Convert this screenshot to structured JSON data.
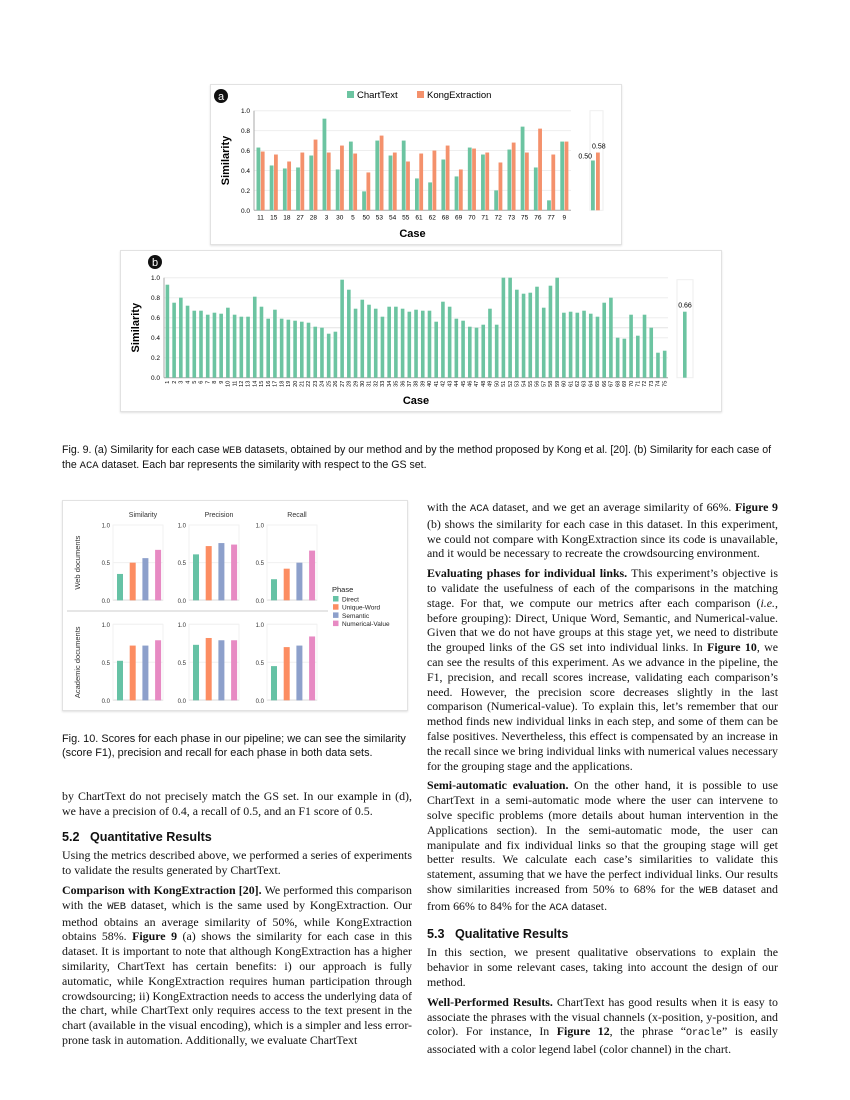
{
  "colors": {
    "charttext": "#6cc4a1",
    "kong": "#f4916c",
    "direct": "#66c2a5",
    "unique_word": "#fc8d62",
    "semantic": "#8da0cb",
    "numerical_value": "#e78ac3",
    "badge": "#111111"
  },
  "chart_data": [
    {
      "type": "bar",
      "panel_label": "a",
      "xlabel": "Case",
      "ylabel": "Similarity",
      "ylim": [
        0,
        1
      ],
      "yticks": [
        "0.0",
        "0.2",
        "0.4",
        "0.6",
        "0.8",
        "1.0"
      ],
      "grid": true,
      "legend": "top",
      "categories": [
        "11",
        "15",
        "18",
        "27",
        "28",
        "3",
        "30",
        "5",
        "50",
        "53",
        "54",
        "55",
        "61",
        "62",
        "68",
        "69",
        "70",
        "71",
        "72",
        "73",
        "75",
        "76",
        "77",
        "9"
      ],
      "series": [
        {
          "name": "ChartText",
          "values": [
            0.63,
            0.45,
            0.42,
            0.43,
            0.55,
            0.92,
            0.41,
            0.69,
            0.19,
            0.7,
            0.55,
            0.7,
            0.32,
            0.28,
            0.51,
            0.34,
            0.63,
            0.56,
            0.2,
            0.61,
            0.84,
            0.43,
            0.1,
            0.69
          ]
        },
        {
          "name": "KongExtraction",
          "values": [
            0.59,
            0.56,
            0.49,
            0.58,
            0.71,
            0.58,
            0.65,
            0.57,
            0.38,
            0.75,
            0.58,
            0.49,
            0.57,
            0.6,
            0.65,
            0.41,
            0.62,
            0.58,
            0.48,
            0.68,
            0.58,
            0.82,
            0.56,
            0.69
          ]
        }
      ],
      "average": {
        "values": [
          0.5,
          0.58
        ],
        "labels": [
          "0.50",
          "0.58"
        ]
      }
    },
    {
      "type": "bar",
      "panel_label": "b",
      "xlabel": "Case",
      "ylabel": "Similarity",
      "ylim": [
        0,
        1
      ],
      "yticks": [
        "0.0",
        "0.2",
        "0.4",
        "0.6",
        "0.8",
        "1.0"
      ],
      "grid": true,
      "categories": [
        "1",
        "2",
        "3",
        "4",
        "5",
        "6",
        "7",
        "8",
        "9",
        "10",
        "11",
        "12",
        "13",
        "14",
        "15",
        "16",
        "17",
        "18",
        "19",
        "20",
        "21",
        "22",
        "23",
        "24",
        "25",
        "26",
        "27",
        "28",
        "29",
        "30",
        "31",
        "32",
        "33",
        "34",
        "35",
        "36",
        "37",
        "38",
        "39",
        "40",
        "41",
        "42",
        "43",
        "44",
        "45",
        "46",
        "47",
        "48",
        "49",
        "50",
        "51",
        "52",
        "53",
        "54",
        "55",
        "56",
        "57",
        "58",
        "59",
        "60",
        "61",
        "62",
        "63",
        "64",
        "65",
        "66",
        "67",
        "68",
        "69",
        "70",
        "71",
        "72",
        "73",
        "74",
        "75"
      ],
      "values": [
        0.93,
        0.75,
        0.8,
        0.72,
        0.67,
        0.67,
        0.63,
        0.65,
        0.64,
        0.7,
        0.63,
        0.61,
        0.61,
        0.81,
        0.71,
        0.59,
        0.68,
        0.59,
        0.58,
        0.57,
        0.56,
        0.55,
        0.51,
        0.5,
        0.44,
        0.46,
        0.98,
        0.88,
        0.69,
        0.78,
        0.73,
        0.69,
        0.61,
        0.71,
        0.71,
        0.69,
        0.66,
        0.68,
        0.67,
        0.67,
        0.56,
        0.76,
        0.71,
        0.59,
        0.57,
        0.51,
        0.5,
        0.53,
        0.69,
        0.53,
        1.0,
        1.0,
        0.88,
        0.84,
        0.85,
        0.91,
        0.7,
        0.92,
        1.0,
        0.65,
        0.66,
        0.65,
        0.67,
        0.64,
        0.61,
        0.75,
        0.8,
        0.4,
        0.39,
        0.63,
        0.42,
        0.63,
        0.5,
        0.25,
        0.27
      ],
      "average": {
        "value": 0.66,
        "label": "0.66"
      }
    },
    {
      "type": "bar",
      "ylim": [
        0,
        1
      ],
      "yticks": [
        "0.0",
        "0.5",
        "1.0"
      ],
      "columns": [
        "Similarity",
        "Precision",
        "Recall"
      ],
      "rows": [
        "Web documents",
        "Academic documents"
      ],
      "legend_title": "Phase",
      "legend": "right",
      "categories": [
        "Direct",
        "Unique-Word",
        "Semantic",
        "Numerical-Value"
      ],
      "values": {
        "Web documents": {
          "Similarity": [
            0.35,
            0.5,
            0.56,
            0.67
          ],
          "Precision": [
            0.61,
            0.72,
            0.76,
            0.74
          ],
          "Recall": [
            0.28,
            0.42,
            0.5,
            0.66
          ]
        },
        "Academic documents": {
          "Similarity": [
            0.52,
            0.72,
            0.72,
            0.79
          ],
          "Precision": [
            0.73,
            0.82,
            0.79,
            0.79
          ],
          "Recall": [
            0.45,
            0.7,
            0.72,
            0.84
          ]
        }
      }
    }
  ],
  "captions": {
    "fig9": [
      [
        "Fig. 9. (a) Similarity for each case ",
        ""
      ],
      [
        "WEB",
        "m"
      ],
      [
        " datasets, obtained by our method and by the method proposed by Kong et al. [20]. (b) Similarity for each case of the ",
        ""
      ],
      [
        "ACA",
        "m"
      ],
      [
        " dataset. Each bar represents the similarity with respect to the GS set.",
        ""
      ]
    ],
    "fig10": [
      [
        "Fig. 10. Scores for each phase in our pipeline; we can see the similarity (score F1), precision and recall for each phase in both data sets.",
        ""
      ]
    ]
  },
  "left": [
    {
      "type": "p",
      "runs": [
        [
          "by ChartText do not precisely match the GS set. In our example in (d), we have a precision of 0.4, a recall of 0.5, and an F1 score of 0.5.",
          ""
        ]
      ]
    },
    {
      "type": "h",
      "num": "5.2",
      "title": "Quantitative Results"
    },
    {
      "type": "p",
      "runs": [
        [
          "Using the metrics described above, we performed a series of experiments to validate the results generated by ChartText.",
          ""
        ]
      ]
    },
    {
      "type": "p",
      "runs": [
        [
          "Comparison with KongExtraction [20].",
          "b"
        ],
        [
          " We performed this comparison with the ",
          ""
        ],
        [
          "WEB",
          "m"
        ],
        [
          " dataset, which is the same used by KongExtraction. Our method obtains an average similarity of 50%, while KongExtraction obtains 58%. ",
          ""
        ],
        [
          "Figure 9",
          "b"
        ],
        [
          " (a) shows the similarity for each case in this dataset. It is important to note that although KongExtraction has a higher similarity, ChartText has certain benefits: i) our approach is fully automatic, while KongExtraction requires human participation through crowdsourcing; ii) KongExtraction needs to access the underlying data of the chart, while ChartText only requires access to the text present in the chart (available in the visual encoding), which is a simpler and less error-prone task in automation. Additionally, we evaluate ChartText",
          ""
        ]
      ]
    }
  ],
  "right": [
    {
      "type": "p",
      "runs": [
        [
          "with the ",
          ""
        ],
        [
          "ACA",
          "m"
        ],
        [
          " dataset, and we get an average similarity of 66%. ",
          ""
        ],
        [
          "Figure 9",
          "b"
        ],
        [
          " (b) shows the similarity for each case in this dataset. In this experiment, we could not compare with KongExtraction since its code is unavailable, and it would be necessary to recreate the crowdsourcing environment.",
          ""
        ]
      ]
    },
    {
      "type": "p",
      "runs": [
        [
          "Evaluating phases for individual links.",
          "b"
        ],
        [
          " This experiment’s objective is to validate the usefulness of each of the comparisons in the matching stage. For that, we compute our metrics after each comparison (",
          ""
        ],
        [
          "i.e.",
          "i"
        ],
        [
          ", before grouping): Direct, Unique Word, Semantic, and Numerical-value. Given that we do not have groups at this stage yet, we need to distribute the grouped links of the GS set into individual links. In ",
          ""
        ],
        [
          "Figure 10",
          "b"
        ],
        [
          ", we can see the results of this experiment. As we advance in the pipeline, the F1, precision, and recall scores increase, validating each comparison’s need. However, the precision score decreases slightly in the last comparison (Numerical-value). To explain this, let’s remember that our method finds new individual links in each step, and some of them can be false positives. Nevertheless, this effect is compensated by an increase in the recall since we bring individual links with numerical values necessary for the grouping stage and the applications.",
          ""
        ]
      ]
    },
    {
      "type": "p",
      "runs": [
        [
          "Semi-automatic evaluation.",
          "b"
        ],
        [
          " On the other hand, it is possible to use ChartText in a semi-automatic mode where the user can intervene to solve specific problems (more details about human intervention in the Applications section). In the semi-automatic mode, the user can manipulate and fix individual links so that the grouping stage will get better results. We calculate each case’s similarities to validate this statement, assuming that we have the perfect individual links. Our results show similarities increased from 50% to 68% for the ",
          ""
        ],
        [
          "WEB",
          "m"
        ],
        [
          " dataset and from 66% to 84% for the ",
          ""
        ],
        [
          "ACA",
          "m"
        ],
        [
          " dataset.",
          ""
        ]
      ]
    },
    {
      "type": "h",
      "num": "5.3",
      "title": "Qualitative Results"
    },
    {
      "type": "p",
      "runs": [
        [
          "In this section, we present qualitative observations to explain the behavior in some relevant cases, taking into account the design of our method.",
          ""
        ]
      ]
    },
    {
      "type": "p",
      "runs": [
        [
          "Well-Performed Results.",
          "b"
        ],
        [
          " ChartText has good results when it is easy to associate the phrases with the visual channels (x-position, y-position, and color). For instance, In ",
          ""
        ],
        [
          "Figure 12",
          "b"
        ],
        [
          ", the phrase “",
          ""
        ],
        [
          "Oracle",
          "mc"
        ],
        [
          "” is easily associated with a color legend label (color channel) in the chart.",
          ""
        ]
      ]
    }
  ]
}
